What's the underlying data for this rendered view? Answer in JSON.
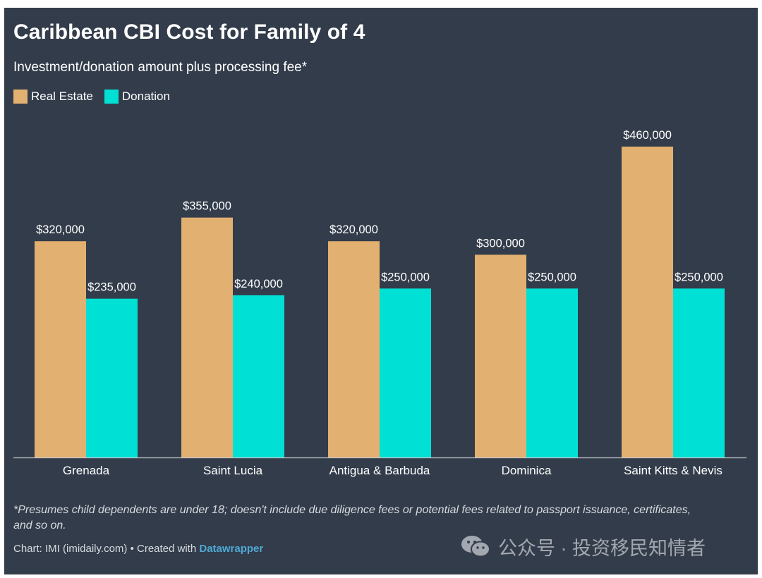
{
  "title": "Caribbean CBI Cost for Family of 4",
  "subtitle": "Investment/donation amount plus processing fee*",
  "colors": {
    "background": "#333c4a",
    "real_estate": "#e2b070",
    "donation": "#00e0d4",
    "baseline": "#c3c7cc"
  },
  "chart_data": {
    "type": "bar",
    "title": "Caribbean CBI Cost for Family of 4",
    "subtitle": "Investment/donation amount plus processing fee*",
    "xlabel": "",
    "ylabel": "",
    "ylim": [
      0,
      480000
    ],
    "grid": false,
    "legend_position": "top-left",
    "categories": [
      "Grenada",
      "Saint Lucia",
      "Antigua & Barbuda",
      "Dominica",
      "Saint Kitts & Nevis"
    ],
    "series": [
      {
        "name": "Real Estate",
        "color": "#e2b070",
        "values": [
          320000,
          355000,
          320000,
          300000,
          460000
        ],
        "labels": [
          "$320,000",
          "$355,000",
          "$320,000",
          "$300,000",
          "$460,000"
        ]
      },
      {
        "name": "Donation",
        "color": "#00e0d4",
        "values": [
          235000,
          240000,
          250000,
          250000,
          250000
        ],
        "labels": [
          "$235,000",
          "$240,000",
          "$250,000",
          "$250,000",
          "$250,000"
        ]
      }
    ]
  },
  "footnote": "*Presumes child dependents are under 18; doesn't include due diligence fees or potential fees related to passport issuance, certificates, and so on.",
  "credit": {
    "prefix": "Chart: IMI (imidaily.com) • Created with ",
    "link": "Datawrapper"
  },
  "watermark": {
    "icon": "wechat-icon",
    "text": "公众号 · 投资移民知情者"
  }
}
